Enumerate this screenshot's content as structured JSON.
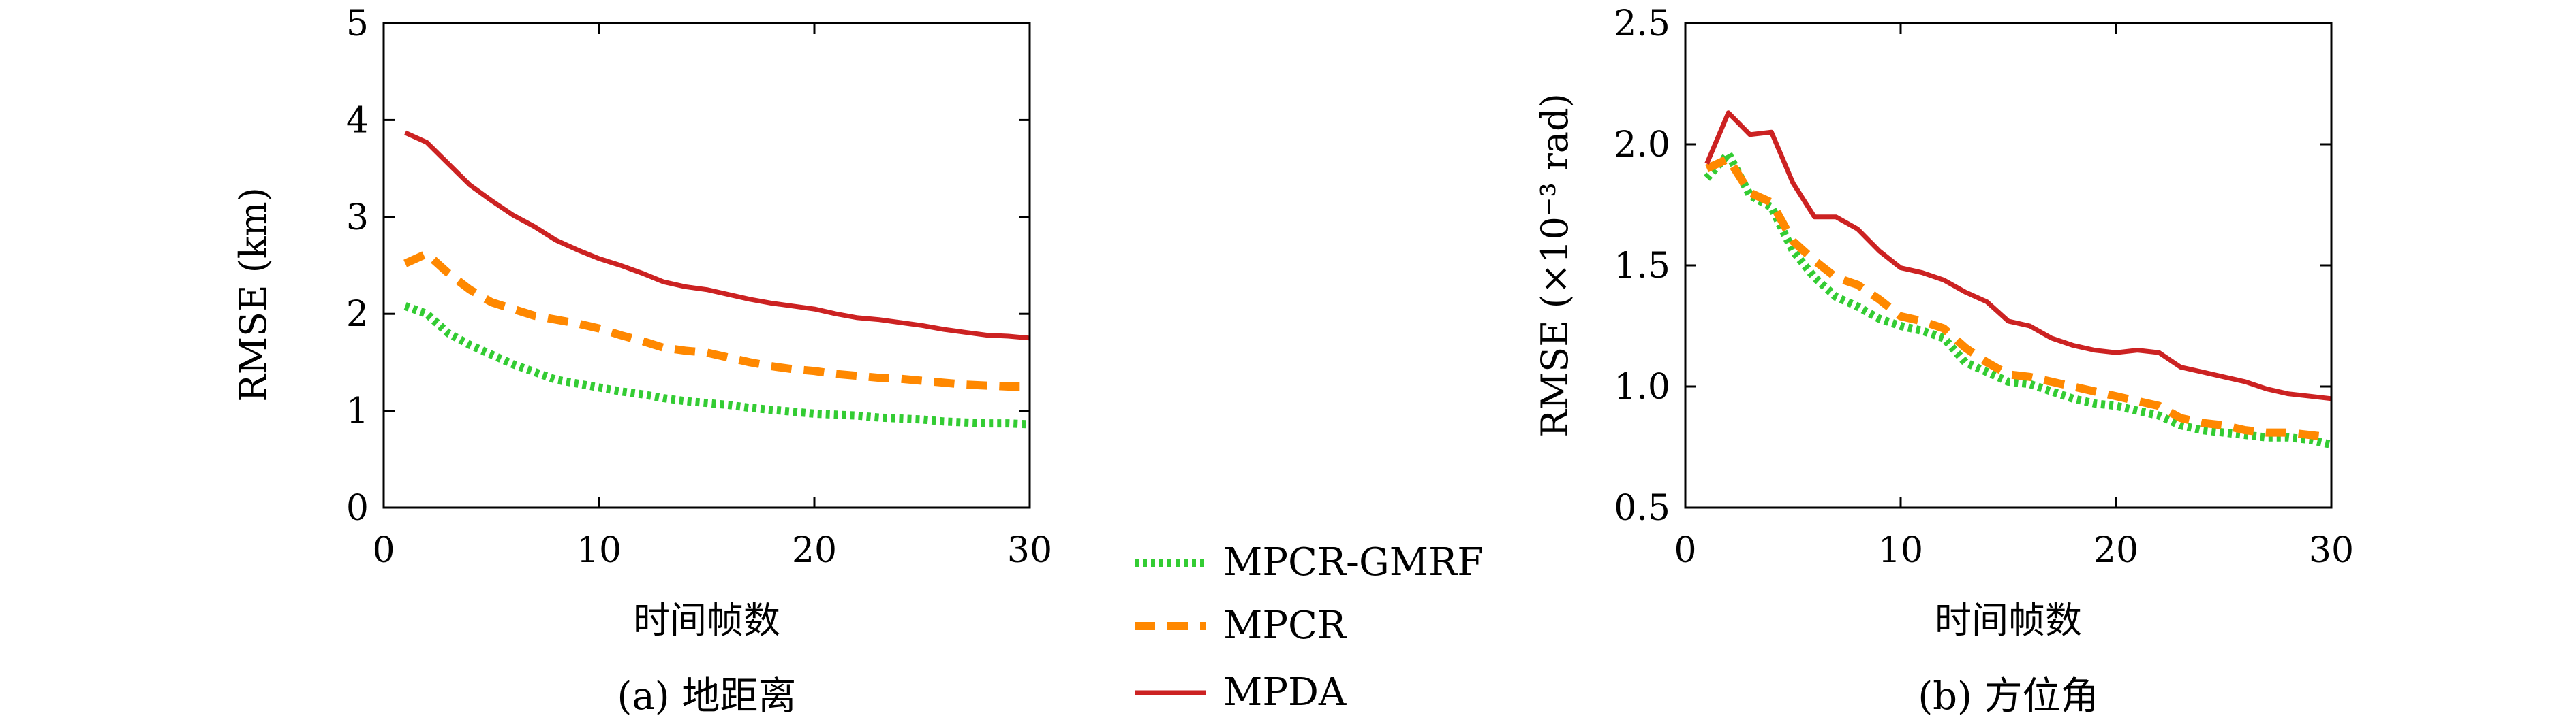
{
  "chart_data": [
    {
      "type": "line",
      "xlabel": "时间帧数",
      "ylabel": "RMSE (km)",
      "caption": "(a) 地距离",
      "xlim": [
        0,
        30
      ],
      "ylim": [
        0,
        5
      ],
      "xticks": [
        0,
        10,
        20,
        30
      ],
      "yticks": [
        0,
        1,
        2,
        3,
        4,
        5
      ],
      "x": [
        1,
        2,
        3,
        4,
        5,
        6,
        7,
        8,
        9,
        10,
        11,
        12,
        13,
        14,
        15,
        16,
        17,
        18,
        19,
        20,
        21,
        22,
        23,
        24,
        25,
        26,
        27,
        28,
        29,
        30
      ],
      "series": [
        {
          "name": "MPCR-GMRF",
          "color": "#33cc33",
          "dash": "dotted",
          "values": [
            2.08,
            2.0,
            1.8,
            1.68,
            1.58,
            1.48,
            1.4,
            1.32,
            1.28,
            1.24,
            1.2,
            1.17,
            1.13,
            1.1,
            1.08,
            1.06,
            1.03,
            1.01,
            0.99,
            0.97,
            0.96,
            0.95,
            0.93,
            0.92,
            0.91,
            0.89,
            0.88,
            0.87,
            0.87,
            0.86
          ]
        },
        {
          "name": "MPCR",
          "color": "#ff8800",
          "dash": "dashed",
          "values": [
            2.52,
            2.62,
            2.42,
            2.25,
            2.12,
            2.05,
            1.98,
            1.94,
            1.9,
            1.85,
            1.78,
            1.72,
            1.65,
            1.62,
            1.6,
            1.55,
            1.5,
            1.46,
            1.43,
            1.41,
            1.38,
            1.36,
            1.34,
            1.33,
            1.31,
            1.29,
            1.27,
            1.26,
            1.25,
            1.25
          ]
        },
        {
          "name": "MPDA",
          "color": "#cc2222",
          "dash": "solid",
          "values": [
            3.87,
            3.77,
            3.55,
            3.33,
            3.17,
            3.02,
            2.9,
            2.76,
            2.66,
            2.57,
            2.5,
            2.42,
            2.33,
            2.28,
            2.25,
            2.2,
            2.15,
            2.11,
            2.08,
            2.05,
            2.0,
            1.96,
            1.94,
            1.91,
            1.88,
            1.84,
            1.81,
            1.78,
            1.77,
            1.75
          ]
        }
      ]
    },
    {
      "type": "line",
      "xlabel": "时间帧数",
      "ylabel": "RMSE (×10⁻³ rad)",
      "caption": "(b) 方位角",
      "xlim": [
        0,
        30
      ],
      "ylim": [
        0.5,
        2.5
      ],
      "xticks": [
        0,
        10,
        20,
        30
      ],
      "yticks": [
        "0.5",
        "1.0",
        "1.5",
        "2.0",
        "2.5"
      ],
      "x": [
        1,
        2,
        3,
        4,
        5,
        6,
        7,
        8,
        9,
        10,
        11,
        12,
        13,
        14,
        15,
        16,
        17,
        18,
        19,
        20,
        21,
        22,
        23,
        24,
        25,
        26,
        27,
        28,
        29,
        30
      ],
      "series": [
        {
          "name": "MPCR-GMRF",
          "color": "#33cc33",
          "dash": "dotted",
          "values": [
            1.86,
            1.96,
            1.79,
            1.74,
            1.56,
            1.45,
            1.37,
            1.33,
            1.28,
            1.25,
            1.23,
            1.2,
            1.1,
            1.06,
            1.02,
            1.01,
            0.98,
            0.95,
            0.93,
            0.92,
            0.9,
            0.88,
            0.84,
            0.82,
            0.81,
            0.8,
            0.79,
            0.79,
            0.78,
            0.76
          ]
        },
        {
          "name": "MPCR",
          "color": "#ff8800",
          "dash": "dashed",
          "values": [
            1.9,
            1.94,
            1.8,
            1.76,
            1.6,
            1.52,
            1.45,
            1.42,
            1.36,
            1.29,
            1.27,
            1.24,
            1.16,
            1.1,
            1.05,
            1.04,
            1.02,
            1.0,
            0.98,
            0.96,
            0.94,
            0.92,
            0.87,
            0.85,
            0.84,
            0.82,
            0.81,
            0.81,
            0.8,
            0.79
          ]
        },
        {
          "name": "MPDA",
          "color": "#cc2222",
          "dash": "solid",
          "values": [
            1.92,
            2.13,
            2.04,
            2.05,
            1.84,
            1.7,
            1.7,
            1.65,
            1.56,
            1.49,
            1.47,
            1.44,
            1.39,
            1.35,
            1.27,
            1.25,
            1.2,
            1.17,
            1.15,
            1.14,
            1.15,
            1.14,
            1.08,
            1.06,
            1.04,
            1.02,
            0.99,
            0.97,
            0.96,
            0.95
          ]
        }
      ]
    }
  ],
  "legend": {
    "placement": "center",
    "items": [
      {
        "label": "MPCR-GMRF",
        "color": "#33cc33",
        "dash": "dotted"
      },
      {
        "label": "MPCR",
        "color": "#ff8800",
        "dash": "dashed"
      },
      {
        "label": "MPDA",
        "color": "#cc2222",
        "dash": "solid"
      }
    ]
  }
}
